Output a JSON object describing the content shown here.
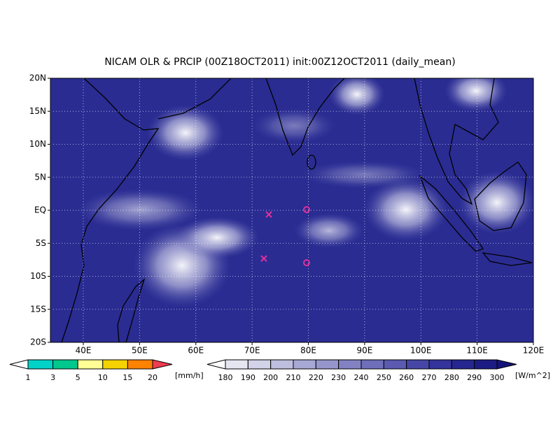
{
  "header": {
    "title": "NICAM OLR & PRCIP (00Z18OCT2011) init:00Z12OCT2011 (daily_mean)"
  },
  "map": {
    "lat_labels": [
      "20N",
      "15N",
      "10N",
      "5N",
      "EQ",
      "5S",
      "10S",
      "15S",
      "20S"
    ],
    "lon_labels": [
      "40E",
      "50E",
      "60E",
      "70E",
      "80E",
      "90E",
      "100E",
      "110E",
      "120E"
    ]
  },
  "precip_legend": {
    "labels": [
      "1",
      "3",
      "5",
      "10",
      "15",
      "20"
    ],
    "unit": "[mm/h]",
    "colors": [
      "#ffffff",
      "#00d2c8",
      "#00c88c",
      "#ffff96",
      "#f5d200",
      "#ff8200",
      "#f03c50"
    ]
  },
  "olr_legend": {
    "labels": [
      "180",
      "190",
      "200",
      "210",
      "220",
      "230",
      "240",
      "250",
      "260",
      "270",
      "280",
      "290",
      "300"
    ],
    "unit": "[W/m^2]",
    "colors": [
      "#ffffff",
      "#e6e6f2",
      "#d2d2e8",
      "#bebedf",
      "#a8a8d5",
      "#9696cc",
      "#8282c3",
      "#6e6eba",
      "#5a5ab0",
      "#4646a6",
      "#34349c",
      "#262690",
      "#1c1c84",
      "#141478"
    ]
  }
}
